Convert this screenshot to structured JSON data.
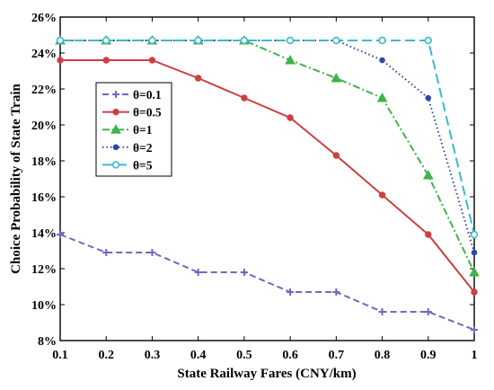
{
  "chart_data": {
    "type": "line",
    "title": "",
    "xlabel": "State Railway Fares (CNY/km)",
    "ylabel": "Choice Probability of State Train",
    "x": [
      0.1,
      0.2,
      0.3,
      0.4,
      0.5,
      0.6,
      0.7,
      0.8,
      0.9,
      1
    ],
    "x_tick_labels": [
      "0.1",
      "0.2",
      "0.3",
      "0.4",
      "0.5",
      "0.6",
      "0.7",
      "0.8",
      "0.9",
      "1"
    ],
    "xlim": [
      0.1,
      1
    ],
    "ylim": [
      8,
      26
    ],
    "y_ticks": [
      8,
      10,
      12,
      14,
      16,
      18,
      20,
      22,
      24,
      26
    ],
    "y_tick_labels": [
      "8%",
      "10%",
      "12%",
      "14%",
      "16%",
      "18%",
      "20%",
      "22%",
      "24%",
      "26%"
    ],
    "grid": false,
    "legend_position": "left",
    "series": [
      {
        "name": "θ=0.1",
        "color": "#7466c0",
        "dash": "dashed",
        "marker": "plus",
        "values": [
          13.9,
          12.9,
          12.9,
          11.8,
          11.8,
          10.7,
          10.7,
          9.6,
          9.6,
          8.6
        ]
      },
      {
        "name": "θ=0.5",
        "color": "#cc4040",
        "dash": "solid",
        "marker": "circle",
        "values": [
          23.6,
          23.6,
          23.6,
          22.6,
          21.5,
          20.4,
          18.3,
          16.1,
          13.9,
          10.7
        ]
      },
      {
        "name": "θ=1",
        "color": "#41b24c",
        "dash": "dashdot",
        "marker": "triangle",
        "values": [
          24.7,
          24.7,
          24.7,
          24.7,
          24.7,
          23.6,
          22.6,
          21.5,
          17.2,
          11.8
        ]
      },
      {
        "name": "θ=2",
        "color": "#2a4aa8",
        "dash": "dotted",
        "marker": "dot",
        "values": [
          24.7,
          24.7,
          24.7,
          24.7,
          24.7,
          24.7,
          24.7,
          23.6,
          21.5,
          12.9
        ]
      },
      {
        "name": "θ=5",
        "color": "#3eb8d0",
        "dash": "longdash",
        "marker": "open-circle",
        "values": [
          24.7,
          24.7,
          24.7,
          24.7,
          24.7,
          24.7,
          24.7,
          24.7,
          24.7,
          13.9
        ]
      }
    ]
  }
}
